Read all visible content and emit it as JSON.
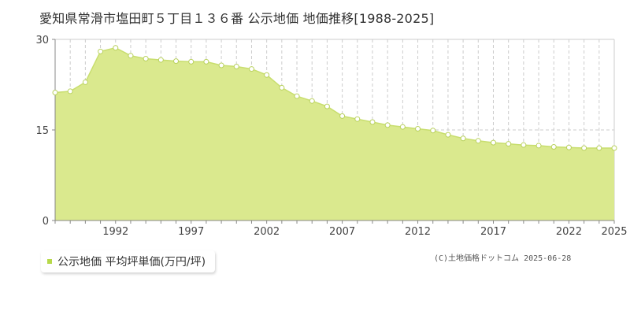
{
  "title": "愛知県常滑市塩田町５丁目１３６番 公示地価 地価推移[1988-2025]",
  "legend": {
    "label": "公示地価 平均坪単価(万円/坪)"
  },
  "credit": "(C)土地価格ドットコム 2025-06-28",
  "colors": {
    "area_fill": "#dae98e",
    "line": "#c8de6e",
    "marker_stroke": "#b9d15e",
    "marker_fill": "#ffffff",
    "grid": "#cccccc",
    "axis": "#888888",
    "legend_swatch": "#b7d94a"
  },
  "chart_data": {
    "type": "area",
    "title": "",
    "xlabel": "",
    "ylabel": "",
    "xlim": [
      1988,
      2025
    ],
    "ylim": [
      0,
      30
    ],
    "y_ticks": [
      0,
      15,
      30
    ],
    "x_tick_labels": [
      1992,
      1997,
      2002,
      2007,
      2012,
      2017,
      2022,
      2025
    ],
    "grid": true,
    "markers": true,
    "series": [
      {
        "name": "公示地価 平均坪単価(万円/坪)",
        "x": [
          1988,
          1989,
          1990,
          1991,
          1992,
          1993,
          1994,
          1995,
          1996,
          1997,
          1998,
          1999,
          2000,
          2001,
          2002,
          2003,
          2004,
          2005,
          2006,
          2007,
          2008,
          2009,
          2010,
          2011,
          2012,
          2013,
          2014,
          2015,
          2016,
          2017,
          2018,
          2019,
          2020,
          2021,
          2022,
          2023,
          2024,
          2025
        ],
        "values": [
          21.2,
          21.4,
          22.9,
          28.0,
          28.6,
          27.3,
          26.8,
          26.6,
          26.4,
          26.3,
          26.3,
          25.7,
          25.5,
          25.1,
          24.1,
          22.0,
          20.6,
          19.8,
          18.9,
          17.3,
          16.8,
          16.3,
          15.8,
          15.5,
          15.2,
          14.9,
          14.2,
          13.6,
          13.2,
          12.9,
          12.7,
          12.5,
          12.4,
          12.2,
          12.1,
          12.0,
          12.0,
          12.0
        ]
      }
    ]
  }
}
